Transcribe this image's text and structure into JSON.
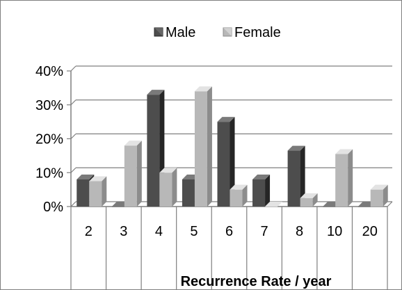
{
  "chart_data": {
    "type": "bar",
    "style": "3d-clustered-column",
    "title": "",
    "xlabel": "Recurrence Rate / year",
    "ylabel": "",
    "categories": [
      "2",
      "3",
      "4",
      "5",
      "6",
      "7",
      "8",
      "10",
      "20"
    ],
    "series": [
      {
        "name": "Male",
        "values": [
          8,
          0,
          33,
          8,
          25,
          8,
          16.5,
          0,
          0
        ]
      },
      {
        "name": "Female",
        "values": [
          7.5,
          18,
          10,
          34,
          5,
          0,
          2.5,
          15.5,
          5
        ]
      }
    ],
    "ylim": [
      0,
      40
    ],
    "yticks": [
      "0%",
      "10%",
      "20%",
      "30%",
      "40%"
    ],
    "grid": true,
    "legend_position": "top-center",
    "colors": {
      "male": "#4d4d4d",
      "male_dark": "#262626",
      "male_light": "#7a7a7a",
      "female": "#b8b8b8",
      "female_dark": "#8c8c8c",
      "female_light": "#e3e3e3",
      "grid": "#7f7f7f",
      "axis": "#7f7f7f"
    }
  }
}
